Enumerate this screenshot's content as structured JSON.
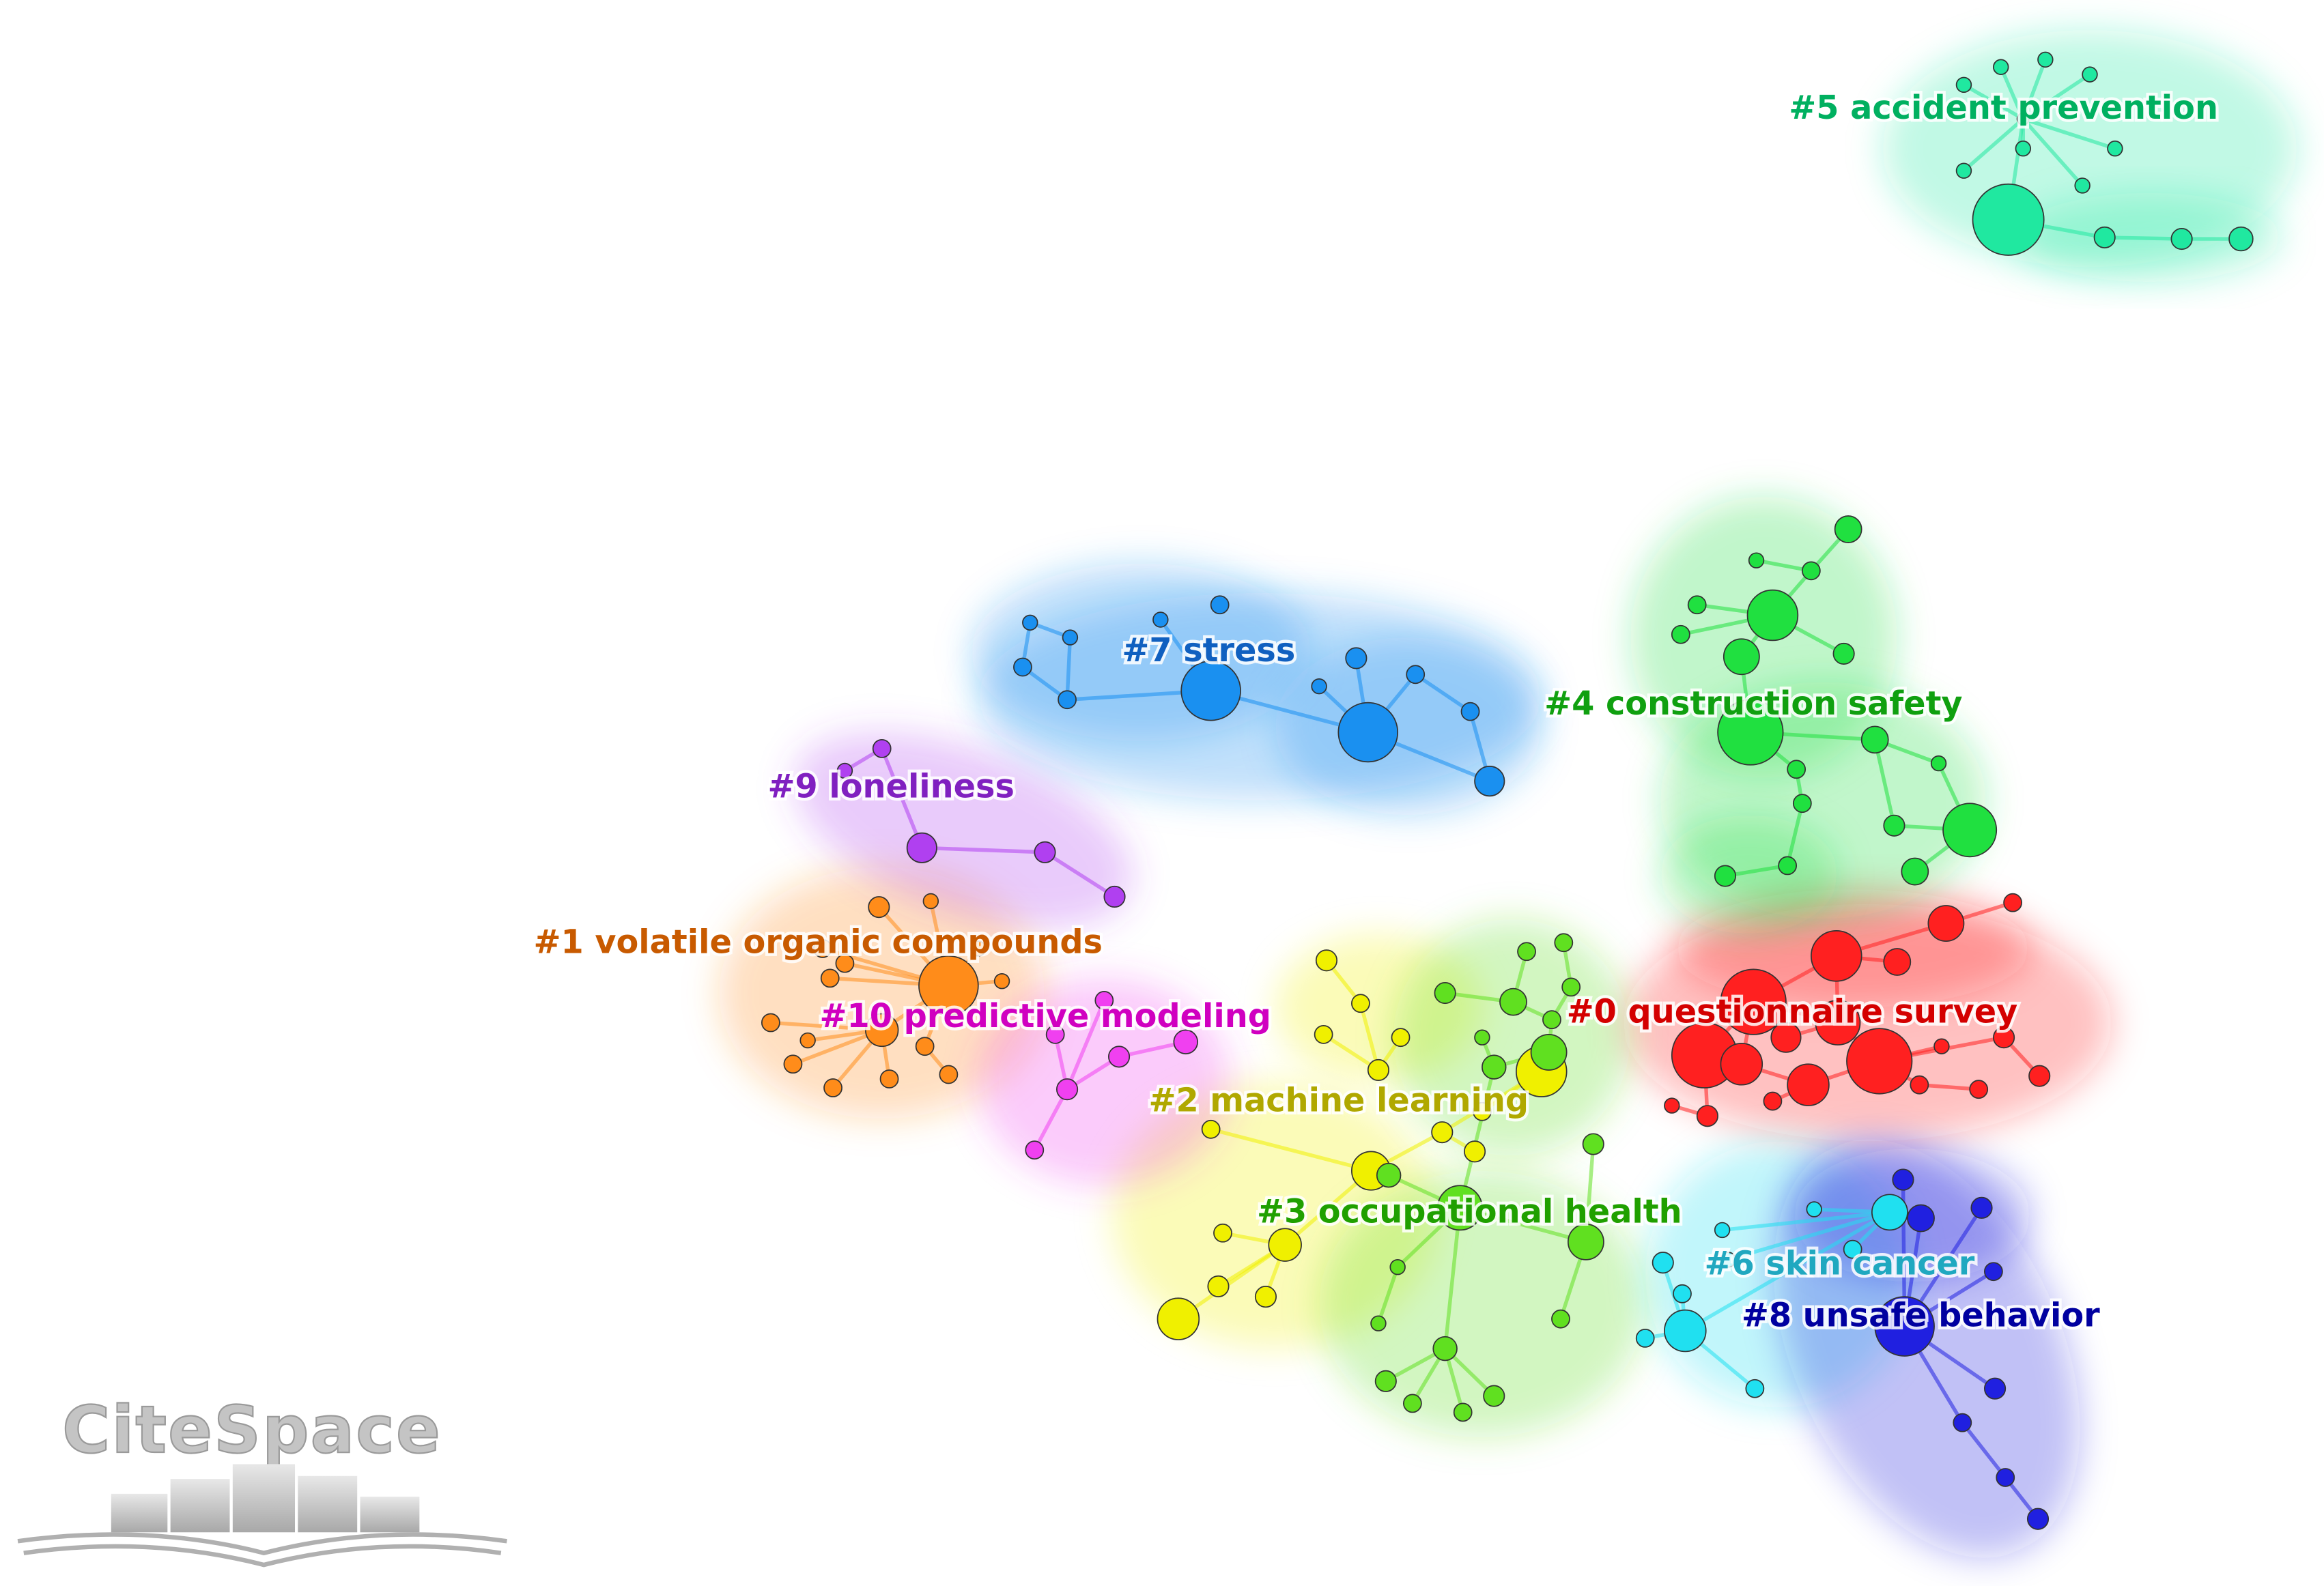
{
  "clusters": [
    {
      "label": "#0 questionnaire survey"
    },
    {
      "label": "#1 volatile organic compounds"
    },
    {
      "label": "#2 machine learning"
    },
    {
      "label": "#3 occupational health"
    },
    {
      "label": "#4 construction safety"
    },
    {
      "label": "#5 accident prevention"
    },
    {
      "label": "#6 skin cancer"
    },
    {
      "label": "#7 stress"
    },
    {
      "label": "#8 unsafe behavior"
    },
    {
      "label": "#9 loneliness"
    },
    {
      "label": "#10 predictive modeling"
    }
  ],
  "logo": {
    "text": "CiteSpace"
  }
}
